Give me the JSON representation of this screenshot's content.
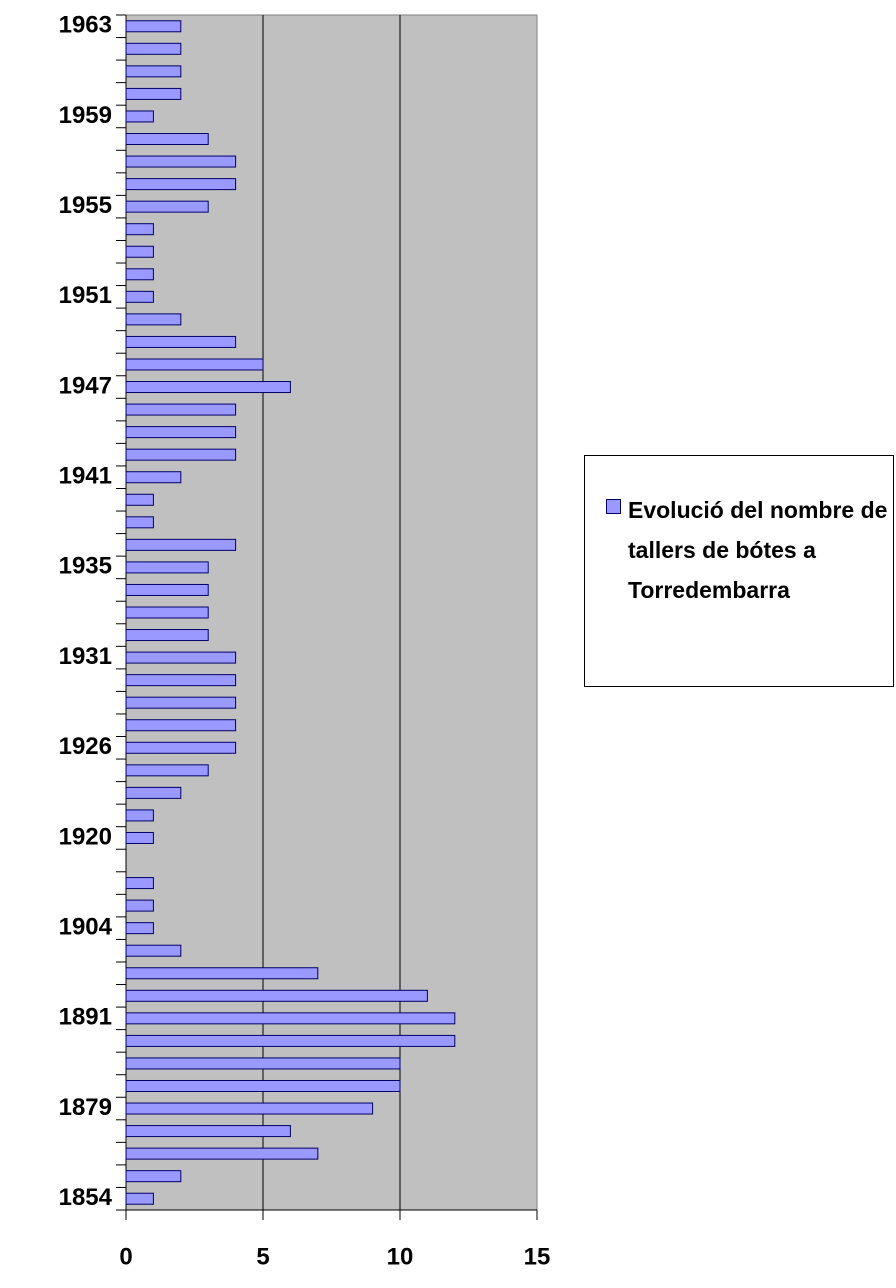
{
  "chart_data": {
    "type": "barh",
    "categories": [
      "1854",
      null,
      null,
      null,
      "1879",
      null,
      null,
      null,
      "1891",
      null,
      null,
      null,
      "1904",
      null,
      null,
      null,
      "1920",
      null,
      null,
      null,
      "1926",
      null,
      null,
      null,
      "1931",
      null,
      null,
      null,
      "1935",
      null,
      null,
      null,
      "1941",
      null,
      null,
      null,
      "1947",
      null,
      null,
      null,
      "1951",
      null,
      null,
      null,
      "1955",
      null,
      null,
      null,
      "1959",
      null,
      null,
      null,
      "1963"
    ],
    "series": [
      {
        "name": "Evolució del nombre de tallers de bótes a Torredembarra",
        "color": "#9999ff",
        "values": [
          1,
          2,
          7,
          6,
          9,
          10,
          10,
          12,
          12,
          11,
          7,
          2,
          1,
          1,
          1,
          0,
          1,
          1,
          2,
          3,
          4,
          4,
          4,
          4,
          4,
          3,
          3,
          3,
          3,
          4,
          1,
          1,
          2,
          4,
          4,
          4,
          6,
          5,
          4,
          2,
          1,
          1,
          1,
          1,
          3,
          4,
          4,
          3,
          1,
          2,
          2,
          2,
          2
        ]
      }
    ],
    "xlim": [
      0,
      15
    ],
    "xticks": [
      0,
      5,
      10,
      15
    ],
    "grid": true,
    "legend": "right"
  }
}
